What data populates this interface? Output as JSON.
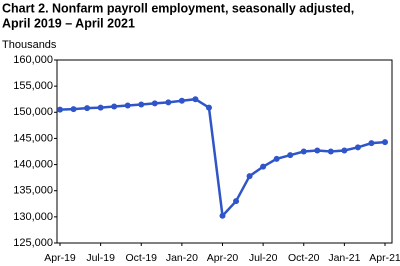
{
  "chart_data": {
    "type": "line",
    "title": [
      "Chart 2. Nonfarm payroll employment, seasonally adjusted,",
      "April 2019 – April 2021"
    ],
    "y_label": "Thousands",
    "categories": [
      "Apr-19",
      null,
      null,
      "Jul-19",
      null,
      null,
      "Oct-19",
      null,
      null,
      "Jan-20",
      null,
      null,
      "Apr-20",
      null,
      null,
      "Jul-20",
      null,
      null,
      "Oct-20",
      null,
      null,
      "Jan-21",
      null,
      null,
      "Apr-21"
    ],
    "series": [
      {
        "name": "Nonfarm payroll employment",
        "color": "#2f55c9",
        "values": [
          150500,
          150600,
          150800,
          150900,
          151100,
          151300,
          151500,
          151700,
          151900,
          152200,
          152500,
          150900,
          130200,
          133000,
          137800,
          139600,
          141100,
          141800,
          142500,
          142700,
          142500,
          142700,
          143300,
          144100,
          144300
        ]
      }
    ],
    "ylim": [
      125000,
      160000
    ],
    "yticks": [
      {
        "value": 125000,
        "label": "125,000"
      },
      {
        "value": 130000,
        "label": "130,000"
      },
      {
        "value": 135000,
        "label": "135,000"
      },
      {
        "value": 140000,
        "label": "140,000"
      },
      {
        "value": 145000,
        "label": "145,000"
      },
      {
        "value": 150000,
        "label": "150,000"
      },
      {
        "value": 155000,
        "label": "155,000"
      },
      {
        "value": 160000,
        "label": "160,000"
      }
    ],
    "grid": false
  }
}
